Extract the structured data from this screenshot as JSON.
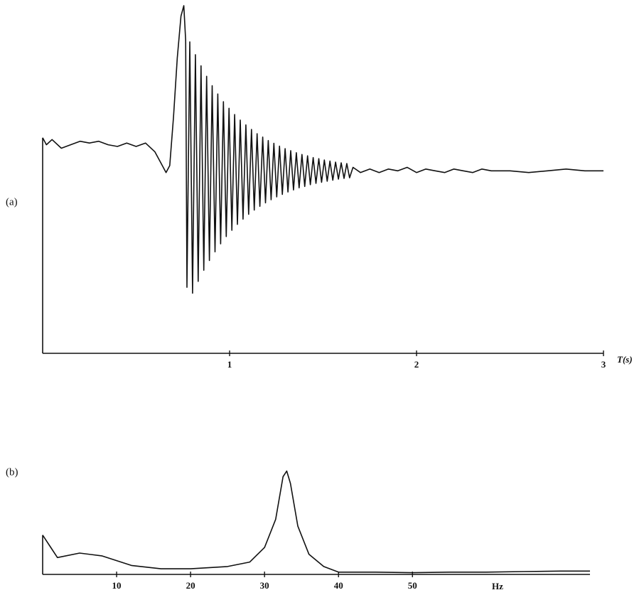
{
  "chart_data": [
    {
      "type": "line",
      "panel_label": "(a)",
      "x_label": "T(s)",
      "color": "#111111",
      "xlim": [
        0,
        3
      ],
      "ylim": [
        0,
        100
      ],
      "xticks": [
        1,
        2,
        3
      ],
      "x": [
        0,
        0.02,
        0.05,
        0.1,
        0.15,
        0.2,
        0.25,
        0.3,
        0.35,
        0.4,
        0.45,
        0.5,
        0.55,
        0.6,
        0.63,
        0.66,
        0.68,
        0.7,
        0.72,
        0.74,
        0.755,
        0.765,
        0.772,
        0.787,
        0.802,
        0.817,
        0.832,
        0.847,
        0.862,
        0.877,
        0.892,
        0.907,
        0.922,
        0.937,
        0.952,
        0.967,
        0.982,
        0.997,
        1.012,
        1.027,
        1.042,
        1.057,
        1.072,
        1.087,
        1.102,
        1.117,
        1.132,
        1.147,
        1.162,
        1.177,
        1.192,
        1.207,
        1.222,
        1.237,
        1.252,
        1.267,
        1.282,
        1.297,
        1.312,
        1.327,
        1.342,
        1.357,
        1.372,
        1.387,
        1.402,
        1.417,
        1.432,
        1.447,
        1.462,
        1.477,
        1.492,
        1.507,
        1.522,
        1.537,
        1.552,
        1.567,
        1.582,
        1.597,
        1.612,
        1.627,
        1.642,
        1.66,
        1.7,
        1.75,
        1.8,
        1.85,
        1.9,
        1.95,
        2.0,
        2.05,
        2.1,
        2.15,
        2.2,
        2.25,
        2.3,
        2.35,
        2.4,
        2.5,
        2.6,
        2.7,
        2.8,
        2.9,
        3.0
      ],
      "values": [
        62,
        60,
        61.5,
        59,
        60,
        61,
        60.5,
        61,
        60,
        59.5,
        60.5,
        59.5,
        60.5,
        58,
        55,
        52,
        54,
        68,
        85,
        97,
        100,
        90,
        19,
        89.6,
        17.3,
        85.9,
        20.7,
        82.7,
        23.9,
        79.7,
        26.7,
        77.0,
        29.2,
        74.6,
        31.5,
        72.4,
        33.6,
        70.5,
        35.4,
        68.7,
        37.1,
        67.1,
        38.6,
        65.7,
        40.0,
        64.4,
        41.2,
        63.2,
        42.3,
        62.2,
        43.3,
        61.2,
        44.2,
        60.4,
        45.0,
        59.6,
        45.7,
        58.9,
        46.4,
        58.3,
        47.0,
        57.7,
        47.6,
        57.2,
        48.0,
        56.8,
        48.5,
        56.3,
        48.9,
        56.0,
        49.2,
        55.6,
        49.5,
        55.3,
        49.8,
        55.0,
        50.1,
        54.8,
        50.3,
        54.6,
        50.5,
        53.5,
        52,
        53,
        52,
        53,
        52.5,
        53.5,
        52,
        53,
        52.5,
        52,
        53,
        52.5,
        52,
        53,
        52.5,
        52.5,
        52,
        52.5,
        53,
        52.5,
        52.5
      ]
    },
    {
      "type": "line",
      "panel_label": "(b)",
      "x_label": "Hz",
      "color": "#111111",
      "xlim": [
        0,
        74
      ],
      "ylim": [
        0,
        100
      ],
      "xticks": [
        10,
        20,
        30,
        40,
        50
      ],
      "x": [
        0,
        1,
        2,
        5,
        8,
        12,
        16,
        20,
        25,
        28,
        30,
        31.5,
        32.5,
        33,
        33.5,
        34.5,
        36,
        38,
        40,
        45,
        50,
        55,
        60,
        65,
        70,
        74
      ],
      "values": [
        35,
        25,
        15,
        19,
        16.5,
        8,
        5,
        5,
        7,
        11,
        24,
        49,
        87,
        92,
        81,
        43,
        18,
        7,
        2,
        2,
        1.5,
        2,
        2,
        2.5,
        3,
        3
      ]
    }
  ]
}
